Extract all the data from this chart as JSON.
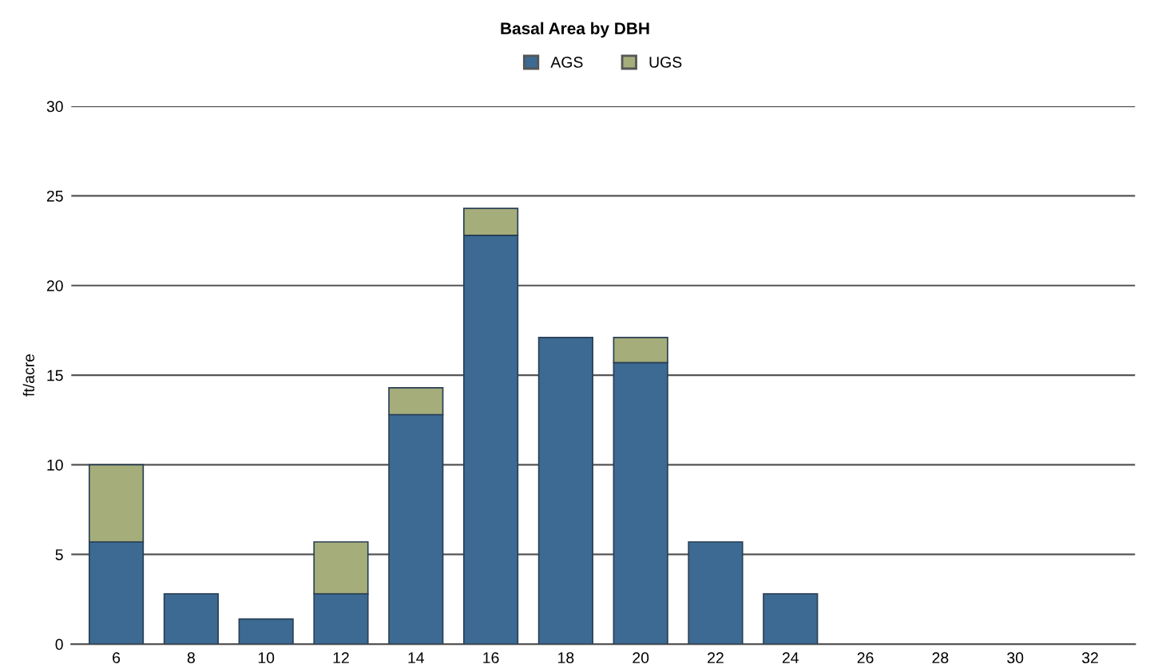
{
  "chart_data": {
    "type": "bar",
    "title": "Basal Area by DBH",
    "ylabel": "ft/acre",
    "categories": [
      "6",
      "8",
      "10",
      "12",
      "14",
      "16",
      "18",
      "20",
      "22",
      "24",
      "26",
      "28",
      "30",
      "32"
    ],
    "series": [
      {
        "name": "AGS",
        "color": "#3c6a92",
        "values": [
          5.7,
          2.8,
          1.4,
          2.8,
          12.8,
          22.8,
          17.1,
          15.7,
          5.7,
          2.8,
          null,
          null,
          null,
          null
        ]
      },
      {
        "name": "UGS",
        "color": "#a5ad7a",
        "values": [
          4.3,
          null,
          null,
          2.9,
          1.5,
          1.5,
          null,
          1.4,
          null,
          null,
          null,
          null,
          null,
          null
        ]
      }
    ],
    "stacked": true,
    "ylim": [
      0,
      30
    ],
    "yticks": [
      0,
      5,
      10,
      15,
      20,
      25,
      30
    ],
    "grid": "y",
    "legend": "top"
  }
}
